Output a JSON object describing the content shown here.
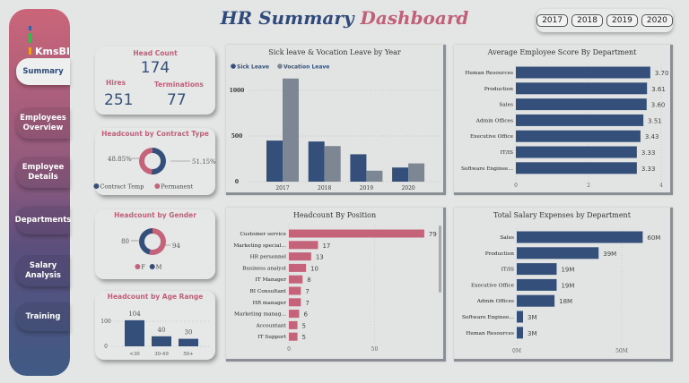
{
  "sidebar": {
    "logo": "KmsBI",
    "items": [
      {
        "label": "Summary",
        "active": true
      },
      {
        "label": "Employees Overview"
      },
      {
        "label": "Employee Details"
      },
      {
        "label": "Departments"
      },
      {
        "label": "Salary Analysis"
      },
      {
        "label": "Training"
      }
    ]
  },
  "header": {
    "title_part1": "HR Summary",
    "title_part2": "Dashboard",
    "years": [
      "2017",
      "2018",
      "2019",
      "2020"
    ]
  },
  "colors": {
    "navy": "#34507a",
    "pink": "#c4637a",
    "gray": "#7d8794",
    "title_blue": "#2f4a7a",
    "title_pink": "#c0607a"
  },
  "kpi": {
    "title": "Head Count",
    "head_count": "174",
    "hires_label": "Hires",
    "hires": "251",
    "terminations_label": "Terminations",
    "terminations": "77"
  },
  "chart_data": [
    {
      "id": "contract",
      "type": "pie",
      "title": "Headcount by Contract Type",
      "labels": [
        "Contract Temp",
        "Permanent"
      ],
      "values": [
        51.15,
        48.85
      ],
      "value_labels": [
        "51.15%",
        "48.85%"
      ],
      "colors": [
        "#34507a",
        "#c4637a"
      ],
      "legend": "bottom"
    },
    {
      "id": "gender",
      "type": "pie",
      "title": "Headcount by Gender",
      "labels": [
        "F",
        "M"
      ],
      "values": [
        94,
        80
      ],
      "value_labels": [
        "94",
        "80"
      ],
      "colors": [
        "#c4637a",
        "#34507a"
      ],
      "legend": "bottom"
    },
    {
      "id": "age",
      "type": "bar",
      "title": "Headcount by Age Range",
      "categories": [
        "<30",
        "30-49",
        "50+"
      ],
      "values": [
        104,
        40,
        30
      ],
      "yticks": [
        "0",
        "100"
      ],
      "ylim": [
        0,
        120
      ]
    },
    {
      "id": "leave",
      "type": "bar",
      "title": "Sick leave & Vocation Leave by Year",
      "categories": [
        "2017",
        "2018",
        "2019",
        "2020"
      ],
      "series": [
        {
          "name": "Sick Leave",
          "values": [
            450,
            440,
            300,
            155
          ],
          "color": "#34507a"
        },
        {
          "name": "Vocation Leave",
          "values": [
            1130,
            390,
            120,
            200
          ],
          "color": "#7d8794"
        }
      ],
      "yticks": [
        "0",
        "500",
        "1000"
      ],
      "ylim": [
        0,
        1150
      ],
      "legend": "top-left",
      "grid": true
    },
    {
      "id": "position",
      "type": "bar",
      "orientation": "horizontal",
      "title": "Headcount By Position",
      "categories": [
        "Customer service",
        "Marketing special...",
        "HR personnel",
        "Business analyst",
        "IT Manager",
        "BI Consultant",
        "HR manager",
        "Marketing manag...",
        "Accountant",
        "IT Support"
      ],
      "values": [
        79,
        17,
        13,
        10,
        8,
        7,
        7,
        6,
        5,
        5
      ],
      "value_labels": [
        "79",
        "17",
        "13",
        "10",
        "8",
        "7",
        "7",
        "6",
        "5",
        "5"
      ],
      "xticks": [
        "0",
        "50"
      ],
      "color": "#c4637a"
    },
    {
      "id": "score",
      "type": "bar",
      "orientation": "horizontal",
      "title": "Average Employee Score By Department",
      "categories": [
        "Human Resources",
        "Production",
        "Sales",
        "Admin Offices",
        "Executive Office",
        "IT/IS",
        "Software Enginee..."
      ],
      "values": [
        3.7,
        3.61,
        3.6,
        3.51,
        3.43,
        3.33,
        3.33
      ],
      "value_labels": [
        "3.70",
        "3.61",
        "3.60",
        "3.51",
        "3.43",
        "3.33",
        "3.33"
      ],
      "xticks": [
        "0",
        "2",
        "4"
      ],
      "xlim": [
        0,
        4
      ],
      "color": "#34507a"
    },
    {
      "id": "salary",
      "type": "bar",
      "orientation": "horizontal",
      "title": "Total Salary Expenses by Department",
      "categories": [
        "Sales",
        "Production",
        "IT/IS",
        "Executive Office",
        "Admin Offices",
        "Software Enginee...",
        "Human Resources"
      ],
      "values": [
        60,
        39,
        19,
        19,
        18,
        3,
        3
      ],
      "value_labels": [
        "60M",
        "39M",
        "19M",
        "19M",
        "18M",
        "3M",
        "3M"
      ],
      "xticks": [
        "0M",
        "50M"
      ],
      "color": "#34507a"
    }
  ]
}
